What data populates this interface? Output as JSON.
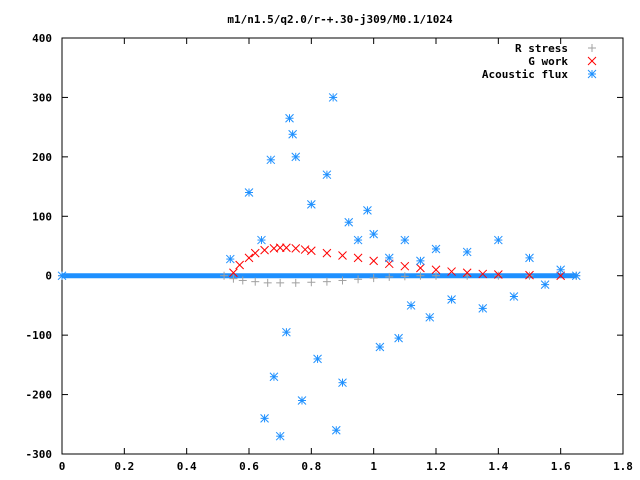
{
  "chart_data": {
    "type": "scatter",
    "title": "m1/n1.5/q2.0/r-+.30-j309/M0.1/1024",
    "xlabel": "",
    "ylabel": "",
    "xlim": [
      0,
      1.8
    ],
    "ylim": [
      -300,
      400
    ],
    "xticks": [
      "0",
      "0.2",
      "0.4",
      "0.6",
      "0.8",
      "1",
      "1.2",
      "1.4",
      "1.6",
      "1.8"
    ],
    "yticks": [
      "400",
      "300",
      "200",
      "100",
      "0",
      "-100",
      "-200",
      "-300"
    ],
    "grid": false,
    "legend": "top-right",
    "series": [
      {
        "name": "R stress",
        "marker": "plus",
        "color": "#a0a0a0",
        "x": [
          0.0,
          0.52,
          0.55,
          0.58,
          0.62,
          0.66,
          0.7,
          0.75,
          0.8,
          0.85,
          0.9,
          0.95,
          1.0,
          1.05,
          1.1,
          1.15,
          1.2,
          1.3,
          1.4,
          1.5,
          1.65
        ],
        "y": [
          0,
          0,
          -5,
          -8,
          -10,
          -12,
          -12,
          -12,
          -11,
          -10,
          -8,
          -6,
          -4,
          -2,
          -1,
          0,
          0,
          0,
          0,
          0,
          0
        ]
      },
      {
        "name": "G work",
        "marker": "cross",
        "color": "#ff0000",
        "x": [
          0.55,
          0.57,
          0.6,
          0.62,
          0.65,
          0.68,
          0.7,
          0.72,
          0.75,
          0.78,
          0.8,
          0.85,
          0.9,
          0.95,
          1.0,
          1.05,
          1.1,
          1.15,
          1.2,
          1.25,
          1.3,
          1.35,
          1.4,
          1.5,
          1.6
        ],
        "y": [
          5,
          18,
          30,
          38,
          43,
          46,
          47,
          47,
          46,
          44,
          42,
          38,
          34,
          30,
          25,
          20,
          16,
          13,
          10,
          7,
          5,
          3,
          2,
          1,
          0
        ]
      },
      {
        "name": "Acoustic flux",
        "marker": "asterisk",
        "color": "#1e90ff",
        "x": [
          0.0,
          0.54,
          0.6,
          0.64,
          0.65,
          0.67,
          0.68,
          0.7,
          0.72,
          0.73,
          0.74,
          0.75,
          0.77,
          0.8,
          0.82,
          0.85,
          0.87,
          0.88,
          0.9,
          0.92,
          0.95,
          0.98,
          1.0,
          1.02,
          1.05,
          1.08,
          1.1,
          1.12,
          1.15,
          1.18,
          1.2,
          1.25,
          1.3,
          1.35,
          1.4,
          1.45,
          1.5,
          1.55,
          1.6,
          1.65
        ],
        "y": [
          0,
          28,
          140,
          60,
          -240,
          195,
          -170,
          -270,
          -95,
          265,
          238,
          200,
          -210,
          120,
          -140,
          170,
          300,
          -260,
          -180,
          90,
          60,
          110,
          70,
          -120,
          30,
          -105,
          60,
          -50,
          25,
          -70,
          45,
          -40,
          40,
          -55,
          60,
          -35,
          30,
          -15,
          10,
          0
        ]
      }
    ]
  }
}
